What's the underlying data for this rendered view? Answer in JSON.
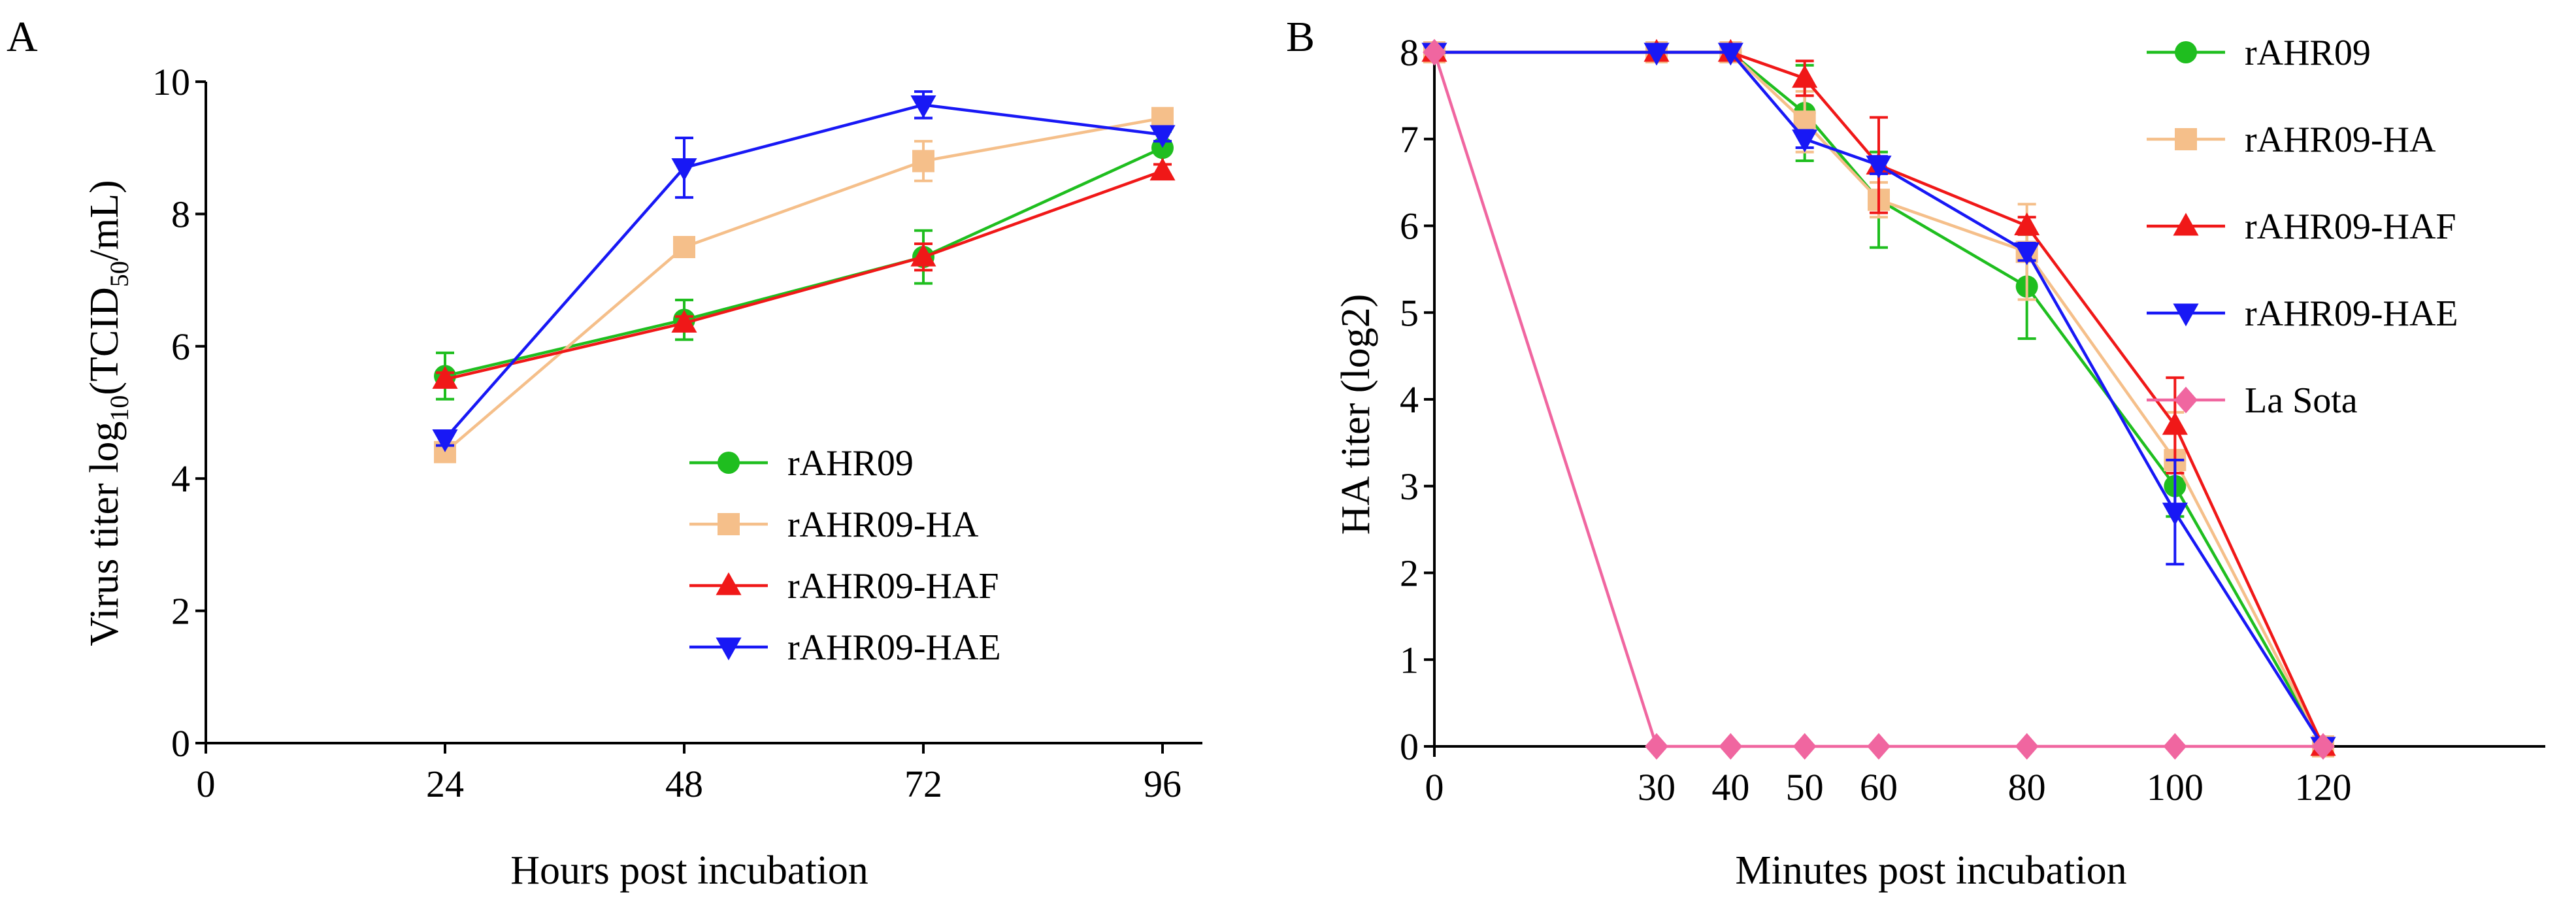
{
  "chart_data": [
    {
      "panel": "A",
      "type": "line",
      "xlabel": "Hours post incubation",
      "ylabel": "Virus titer log10(TCID50/mL)",
      "ylabel_parts": {
        "pre": "Virus titer log",
        "sub1": "10",
        "mid": "(TCID",
        "sub2": "50",
        "post": "/mL)"
      },
      "xlim": [
        0,
        100
      ],
      "ylim": [
        0,
        10
      ],
      "xticks": [
        0,
        24,
        48,
        72,
        96
      ],
      "yticks": [
        0,
        2,
        4,
        6,
        8,
        10
      ],
      "legend_position": "lower-right",
      "x": [
        24,
        48,
        72,
        96
      ],
      "series": [
        {
          "name": "rAHR09",
          "color": "#1fbe1f",
          "marker": "circle",
          "values": [
            5.55,
            6.4,
            7.35,
            9.0
          ],
          "errors": [
            0.35,
            0.3,
            0.4,
            0.25
          ]
        },
        {
          "name": "rAHR09-HA",
          "color": "#f5bf8a",
          "marker": "square",
          "values": [
            4.4,
            7.5,
            8.8,
            9.45
          ],
          "errors": [
            0.1,
            0.1,
            0.3,
            0.1
          ]
        },
        {
          "name": "rAHR09-HAF",
          "color": "#f01818",
          "marker": "triangle-up",
          "values": [
            5.5,
            6.35,
            7.35,
            8.65
          ],
          "errors": [
            0.1,
            0.1,
            0.2,
            0.1
          ]
        },
        {
          "name": "rAHR09-HAE",
          "color": "#1818f5",
          "marker": "triangle-down",
          "values": [
            4.6,
            8.7,
            9.65,
            9.2
          ],
          "errors": [
            0.1,
            0.45,
            0.2,
            0.1
          ]
        }
      ]
    },
    {
      "panel": "B",
      "type": "line",
      "xlabel": "Minutes post incubation",
      "ylabel": "HA titer (log2)",
      "xlim": [
        0,
        150
      ],
      "ylim": [
        0,
        8
      ],
      "xticks": [
        0,
        30,
        40,
        50,
        60,
        80,
        100,
        120
      ],
      "yticks": [
        0,
        1,
        2,
        3,
        4,
        5,
        6,
        7,
        8
      ],
      "legend_position": "top-right",
      "series": [
        {
          "name": "rAHR09",
          "color": "#1fbe1f",
          "marker": "circle",
          "x": [
            0,
            30,
            40,
            50,
            60,
            80,
            100,
            120
          ],
          "values": [
            8,
            8,
            8,
            7.3,
            6.3,
            5.3,
            3.0,
            0
          ],
          "errors": [
            0,
            0,
            0,
            0.55,
            0.55,
            0.6,
            0.35,
            0
          ]
        },
        {
          "name": "rAHR09-HA",
          "color": "#f5bf8a",
          "marker": "square",
          "x": [
            0,
            30,
            40,
            50,
            60,
            80,
            100,
            120
          ],
          "values": [
            8,
            8,
            8,
            7.2,
            6.3,
            5.7,
            3.3,
            0
          ],
          "errors": [
            0,
            0,
            0,
            0.35,
            0.2,
            0.55,
            0.55,
            0
          ]
        },
        {
          "name": "rAHR09-HAF",
          "color": "#f01818",
          "marker": "triangle-up",
          "x": [
            0,
            30,
            40,
            50,
            60,
            80,
            100,
            120
          ],
          "values": [
            8,
            8,
            8,
            7.7,
            6.7,
            6.0,
            3.7,
            0
          ],
          "errors": [
            0,
            0,
            0,
            0.2,
            0.55,
            0.1,
            0.55,
            0
          ]
        },
        {
          "name": "rAHR09-HAE",
          "color": "#1818f5",
          "marker": "triangle-down",
          "x": [
            0,
            30,
            40,
            50,
            60,
            80,
            100,
            120
          ],
          "values": [
            8,
            8,
            8,
            7.0,
            6.7,
            5.7,
            2.7,
            0
          ],
          "errors": [
            0,
            0,
            0,
            0.1,
            0.1,
            0.1,
            0.6,
            0
          ]
        },
        {
          "name": "La Sota",
          "color": "#f066a0",
          "marker": "diamond",
          "x": [
            0,
            30,
            40,
            50,
            60,
            80,
            100,
            120
          ],
          "values": [
            8,
            0,
            0,
            0,
            0,
            0,
            0,
            0
          ],
          "errors": [
            0,
            0,
            0,
            0,
            0,
            0,
            0,
            0
          ]
        }
      ]
    }
  ]
}
